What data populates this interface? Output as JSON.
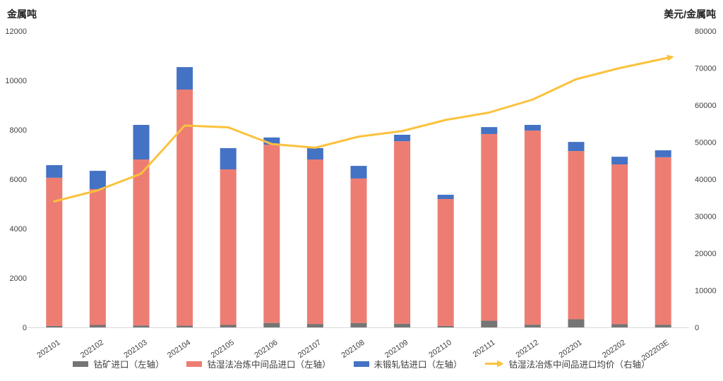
{
  "chart_data": {
    "type": "bar",
    "subtype": "stacked-bar-with-line",
    "title": "",
    "categories": [
      "202101",
      "202102",
      "202103",
      "202104",
      "202105",
      "202106",
      "202107",
      "202108",
      "202109",
      "202110",
      "202111",
      "202112",
      "202201",
      "202202",
      "202203E"
    ],
    "series": [
      {
        "name": "钴矿进口（左轴）",
        "kind": "bar",
        "axis": "left",
        "color": "#757575",
        "values": [
          60,
          100,
          80,
          70,
          100,
          180,
          140,
          180,
          150,
          60,
          270,
          110,
          330,
          130,
          110
        ]
      },
      {
        "name": "钴湿法冶炼中间品进口（左轴）",
        "kind": "bar",
        "axis": "left",
        "color": "#ED7D72",
        "values": [
          6000,
          5500,
          6720,
          9560,
          6300,
          7220,
          6660,
          5850,
          7390,
          5140,
          7560,
          7860,
          6810,
          6470,
          6780
        ]
      },
      {
        "name": "未锻轧钴进口（左轴）",
        "kind": "bar",
        "axis": "left",
        "color": "#4472C4",
        "values": [
          510,
          740,
          1400,
          910,
          860,
          290,
          460,
          510,
          260,
          170,
          280,
          230,
          370,
          310,
          280
        ]
      },
      {
        "name": "钴湿法冶炼中间品进口均价（右轴）",
        "kind": "line",
        "axis": "right",
        "color": "#FBC23D",
        "values": [
          34000,
          37000,
          41500,
          54500,
          54000,
          49500,
          48500,
          51500,
          53000,
          56000,
          58000,
          61500,
          67000,
          70000,
          72500
        ]
      }
    ],
    "left_axis": {
      "title": "金属吨",
      "min": 0,
      "max": 12000,
      "step": 2000
    },
    "right_axis": {
      "title": "美元/金属吨",
      "min": 0,
      "max": 80000,
      "step": 10000
    },
    "grid": false,
    "legend_position": "bottom",
    "axis_line_color": "#D9D9D9",
    "tick_label_color": "#404040"
  }
}
